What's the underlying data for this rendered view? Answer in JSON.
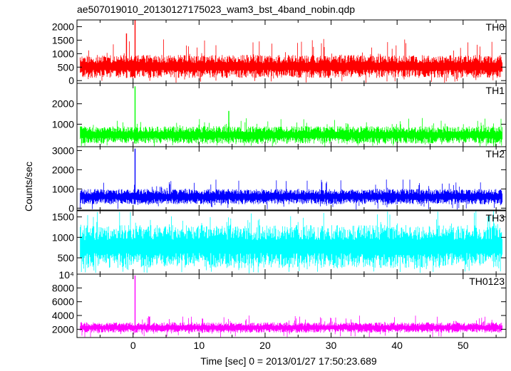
{
  "chart_data": {
    "type": "line",
    "title": "ae507019010_20130127175023_wam3_bst_4band_nobin.qdp",
    "xlabel": "Time [sec] 0 = 2013/01/27 17:50:23.689",
    "ylabel": "Counts/sec",
    "xlim": [
      -8.5,
      56.5
    ],
    "x_ticks": [
      0,
      10,
      20,
      30,
      40,
      50
    ],
    "x_tick_labels": [
      "0",
      "10",
      "20",
      "30",
      "40",
      "50"
    ],
    "grid": false,
    "panels": [
      {
        "name": "TH0",
        "color": "#ff0000",
        "ylim": [
          -100,
          2250
        ],
        "y_ticks": [
          0,
          500,
          1000,
          1500,
          2000
        ],
        "y_tick_labels": [
          "0",
          "500",
          "1000",
          "1500",
          "2000"
        ],
        "x_start": -8,
        "x_end": 56,
        "baseline_low": 100,
        "baseline_high": 950,
        "occasional_peak": 1550,
        "spikes": [
          {
            "x": -1.0,
            "value": 1750
          },
          {
            "x": 0.3,
            "value": 2250
          }
        ]
      },
      {
        "name": "TH1",
        "color": "#00ff00",
        "ylim": [
          -100,
          3000
        ],
        "y_ticks": [
          1000,
          2000
        ],
        "y_tick_labels": [
          "1000",
          "2000"
        ],
        "x_start": -8,
        "x_end": 56,
        "baseline_low": 50,
        "baseline_high": 900,
        "occasional_peak": 1300,
        "spikes": [
          {
            "x": 0.3,
            "value": 2850
          },
          {
            "x": 14.5,
            "value": 1650
          }
        ]
      },
      {
        "name": "TH2",
        "color": "#0000ff",
        "ylim": [
          -100,
          3200
        ],
        "y_ticks": [
          0,
          1000,
          2000,
          3000
        ],
        "y_tick_labels": [
          "0",
          "1000",
          "2000",
          "3000"
        ],
        "x_start": -8,
        "x_end": 56,
        "baseline_low": 200,
        "baseline_high": 1000,
        "occasional_peak": 1500,
        "spikes": [
          {
            "x": 0.3,
            "value": 3100
          }
        ]
      },
      {
        "name": "TH3",
        "color": "#00ffff",
        "ylim": [
          100,
          1650
        ],
        "y_ticks": [
          500,
          1000,
          1500
        ],
        "y_tick_labels": [
          "500",
          "1000",
          "1500"
        ],
        "x_start": -8,
        "x_end": 56,
        "baseline_low": 250,
        "baseline_high": 1300,
        "occasional_peak": 1650,
        "spikes": []
      },
      {
        "name": "TH0123",
        "color": "#ff00ff",
        "ylim": [
          800,
          10000
        ],
        "y_ticks": [
          2000,
          4000,
          6000,
          8000
        ],
        "y_tick_labels": [
          "2000",
          "4000",
          "6000",
          "8000"
        ],
        "top_label": "10⁴",
        "x_start": -8,
        "x_end": 56,
        "baseline_low": 1500,
        "baseline_high": 3000,
        "occasional_peak": 4000,
        "spikes": [
          {
            "x": 0.3,
            "value": 9800
          }
        ]
      }
    ]
  }
}
